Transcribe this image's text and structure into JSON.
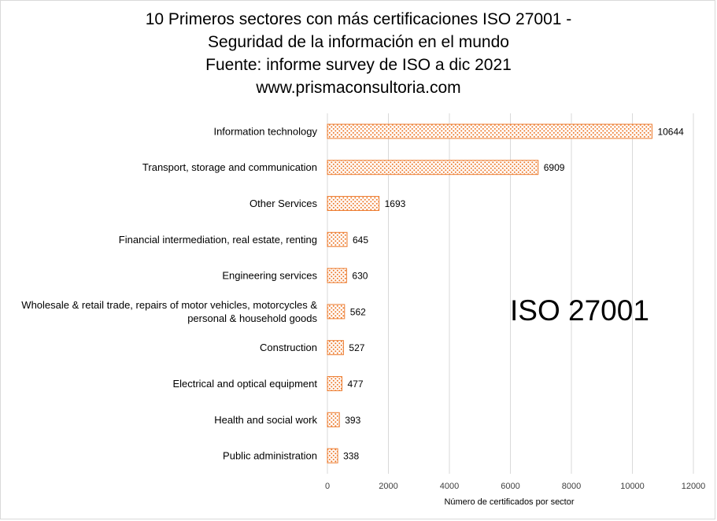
{
  "title": {
    "lines": [
      "10 Primeros sectores con más certificaciones ISO 27001 -",
      "Seguridad de la información en el mundo",
      "Fuente: informe survey de ISO  a dic 2021",
      "www.prismaconsultoria.com"
    ]
  },
  "annotation": "ISO 27001",
  "colors": {
    "bar_stroke": "#ed7d31",
    "bar_dots": "#ed7d31",
    "gridline": "#d9d9d9"
  },
  "chart_data": {
    "type": "bar",
    "orientation": "horizontal",
    "categories": [
      "Information technology",
      "Transport, storage and communication",
      "Other Services",
      "Financial intermediation, real estate, renting",
      "Engineering services",
      [
        "Wholesale & retail trade, repairs of motor vehicles, motorcycles &",
        "personal & household goods"
      ],
      "Construction",
      "Electrical and optical equipment",
      "Health and social work",
      "Public administration"
    ],
    "values": [
      10644,
      6909,
      1693,
      645,
      630,
      562,
      527,
      477,
      393,
      338
    ],
    "xlabel": "Número  de certificados por sector",
    "xlim": [
      0,
      12000
    ],
    "xticks": [
      0,
      2000,
      4000,
      6000,
      8000,
      10000,
      12000
    ],
    "grid": true,
    "pattern": "dotted fill"
  }
}
